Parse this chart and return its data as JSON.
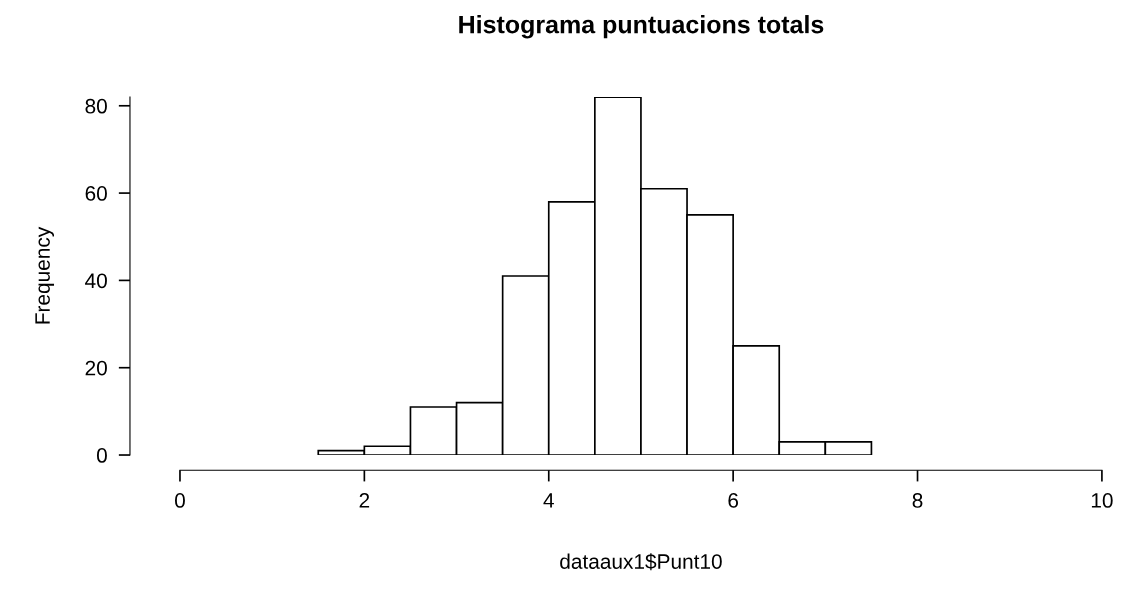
{
  "chart_data": {
    "type": "histogram",
    "title": "Histograma puntuacions totals",
    "xlabel": "dataaux1$Punt10",
    "ylabel": "Frequency",
    "bins": [
      1.5,
      2.0,
      2.5,
      3.0,
      3.5,
      4.0,
      4.5,
      5.0,
      5.5,
      6.0,
      6.5,
      7.0,
      7.5
    ],
    "values": [
      1,
      2,
      11,
      12,
      41,
      58,
      82,
      61,
      55,
      25,
      3,
      3
    ],
    "color": "#ffffff",
    "xlim": [
      0,
      10
    ],
    "xticks": [
      0,
      2,
      4,
      6,
      8,
      10
    ],
    "ylim": [
      0,
      82
    ],
    "yticks": [
      0,
      20,
      40,
      60,
      80
    ],
    "grid": false
  }
}
